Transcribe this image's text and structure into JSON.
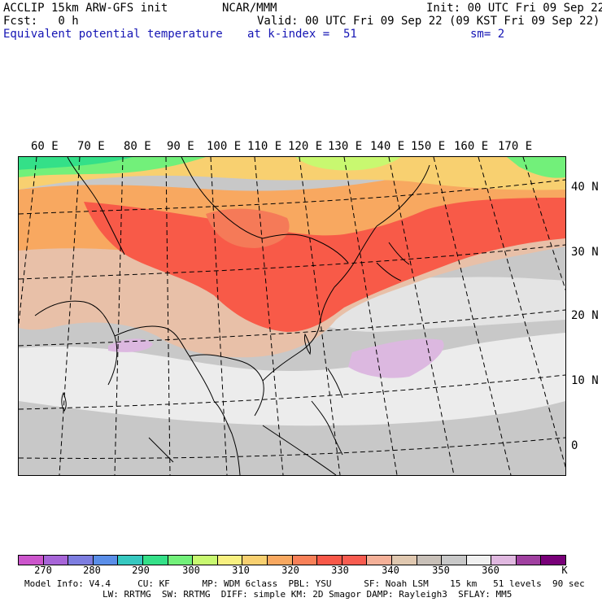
{
  "header": {
    "line1_left": "ACCLIP 15km ARW-GFS init",
    "line1_mid": "NCAR/MMM",
    "line1_right": "Init: 00 UTC Fri 09 Sep 22",
    "line2_left": "Fcst:   0 h",
    "line2_right": "Valid: 00 UTC Fri 09 Sep 22 (09 KST Fri 09 Sep 22)",
    "line3_left": "Equivalent potential temperature",
    "line3_mid": "at k-index =  51",
    "line3_right": "sm= 2"
  },
  "map": {
    "lon_labels": [
      "60 E",
      "70 E",
      "80 E",
      "90 E",
      "100 E",
      "110 E",
      "120 E",
      "130 E",
      "140 E",
      "150 E",
      "160 E",
      "170 E"
    ],
    "lat_labels": [
      "40 N",
      "30 N",
      "20 N",
      "10 N",
      "0"
    ]
  },
  "colorbar": {
    "colors": [
      "#cc55cc",
      "#a765d8",
      "#7d7de0",
      "#5a8ee8",
      "#36c8c0",
      "#34e088",
      "#72f07a",
      "#c8f870",
      "#f8f080",
      "#f8d070",
      "#f8a860",
      "#f88058",
      "#f85848",
      "#f85c50",
      "#f4b098",
      "#e0c8b0",
      "#c8c0b8",
      "#c8c8c8",
      "#f0f0f0",
      "#e0b8e0",
      "#a040a0",
      "#780078"
    ],
    "labels": [
      "270",
      "280",
      "290",
      "300",
      "310",
      "320",
      "330",
      "340",
      "350",
      "360"
    ],
    "unit": "K"
  },
  "footer": {
    "line1": "Model Info: V4.4     CU: KF      MP: WDM 6class  PBL: YSU      SF: Noah LSM    15 km   51 levels  90 sec",
    "line2": "LW: RRTMG  SW: RRTMG  DIFF: simple KM: 2D Smagor DAMP: Rayleigh3  SFLAY: MM5"
  }
}
